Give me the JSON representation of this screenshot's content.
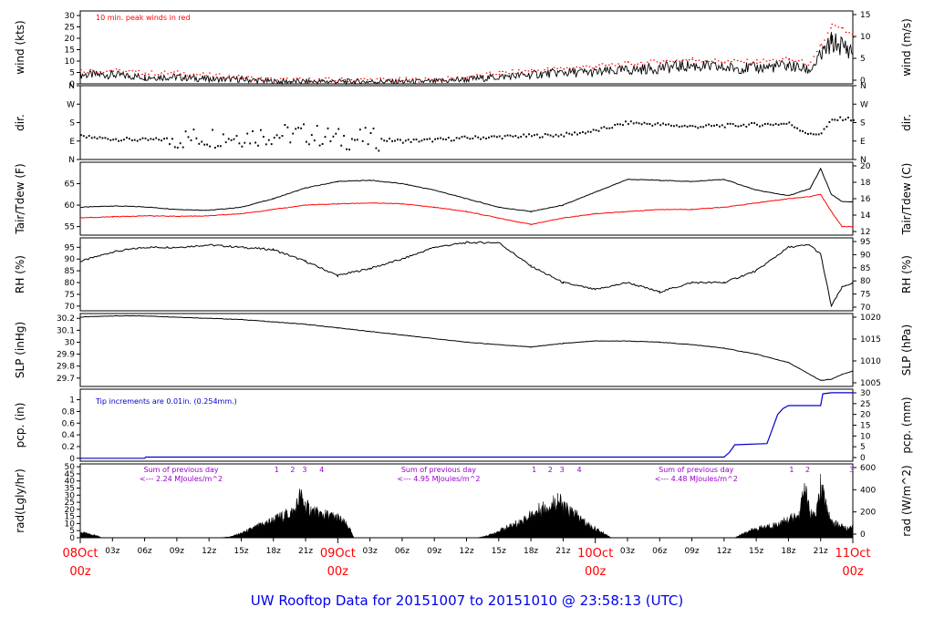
{
  "title": "UW Rooftop Data for 20151007  to  20151010 @ 23:58:13  (UTC)",
  "colors": {
    "title": "#0000ee",
    "peak": "#ff0000",
    "dewpoint": "#ff0000",
    "precip": "#0000cc",
    "note": "#9900cc",
    "date": "#ff0000"
  },
  "x_axis": {
    "range_hours": [
      0,
      72
    ],
    "hour_ticks": [
      "03z",
      "06z",
      "09z",
      "12z",
      "15z",
      "18z",
      "21z",
      "03z",
      "06z",
      "09z",
      "12z",
      "15z",
      "18z",
      "21z",
      "03z",
      "06z",
      "09z",
      "12z",
      "15z",
      "18z",
      "21z"
    ],
    "day_labels": [
      {
        "day": "08Oct",
        "hour": "00z"
      },
      {
        "day": "09Oct",
        "hour": "00z"
      },
      {
        "day": "10Oct",
        "hour": "00z"
      },
      {
        "day": "11Oct",
        "hour": "00z"
      }
    ]
  },
  "chart_data": [
    {
      "type": "line",
      "ylabel": "wind (kts)",
      "ylabel_right": "wind (m/s)",
      "ylim": [
        0,
        32
      ],
      "yticks": [
        0,
        5,
        10,
        15,
        20,
        25,
        30
      ],
      "yticks_right": [
        "0",
        "5",
        "10",
        "15"
      ],
      "legend": "10 min. peak winds in red",
      "series": [
        {
          "name": "wind",
          "x": [
            0,
            3,
            6,
            9,
            12,
            15,
            18,
            21,
            24,
            27,
            30,
            33,
            36,
            39,
            42,
            45,
            48,
            51,
            54,
            57,
            60,
            63,
            66,
            68,
            69,
            70,
            71,
            72
          ],
          "values": [
            4,
            4,
            3,
            3,
            2,
            2,
            1,
            1,
            1,
            1,
            1,
            1,
            2,
            3,
            4,
            5,
            5,
            6,
            7,
            8,
            7,
            7,
            8,
            6,
            12,
            18,
            17,
            14
          ]
        },
        {
          "name": "10 min. peak",
          "x": [
            0,
            3,
            6,
            9,
            12,
            15,
            18,
            21,
            24,
            27,
            30,
            33,
            36,
            39,
            42,
            45,
            48,
            51,
            54,
            57,
            60,
            63,
            66,
            68,
            69,
            70,
            71,
            72
          ],
          "values": [
            6,
            6,
            5,
            5,
            4,
            3,
            2,
            2,
            2,
            2,
            2,
            2,
            3,
            5,
            6,
            7,
            8,
            9,
            10,
            11,
            10,
            10,
            11,
            9,
            17,
            26,
            24,
            21
          ]
        }
      ]
    },
    {
      "type": "scatter",
      "ylabel": "dir.",
      "yticks": [
        "N",
        "E",
        "S",
        "W",
        "N"
      ],
      "series": [
        {
          "name": "direction",
          "x": [
            0,
            3,
            6,
            9,
            12,
            15,
            18,
            21,
            24,
            27,
            30,
            33,
            36,
            39,
            42,
            45,
            48,
            51,
            54,
            57,
            60,
            63,
            66,
            68,
            69,
            70,
            71,
            72
          ],
          "values": [
            110,
            100,
            95,
            100,
            110,
            115,
            120,
            125,
            100,
            100,
            90,
            95,
            105,
            110,
            115,
            120,
            140,
            180,
            170,
            160,
            165,
            170,
            175,
            120,
            130,
            190,
            200,
            195
          ]
        }
      ]
    },
    {
      "type": "line",
      "ylabel": "Tair/Tdew (F)",
      "ylabel_right": "Tair/Tdew (C)",
      "ylim": [
        53,
        70
      ],
      "yticks": [
        55,
        60,
        65
      ],
      "yticks_right": [
        "12",
        "14",
        "16",
        "18",
        "20"
      ],
      "series": [
        {
          "name": "Tair",
          "x": [
            0,
            3,
            6,
            9,
            12,
            15,
            18,
            21,
            24,
            27,
            30,
            33,
            36,
            39,
            42,
            45,
            48,
            51,
            54,
            57,
            60,
            63,
            66,
            68,
            69,
            70,
            71,
            72
          ],
          "values": [
            59.5,
            59.8,
            59.6,
            59,
            58.8,
            59.5,
            61.5,
            64,
            65.5,
            65.8,
            65,
            63.5,
            61.5,
            59.5,
            58.5,
            60,
            63,
            66,
            65.8,
            65.5,
            66,
            63.5,
            62.2,
            63.8,
            68.5,
            62.5,
            60.8,
            60.8
          ]
        },
        {
          "name": "Tdew",
          "x": [
            0,
            3,
            6,
            9,
            12,
            15,
            18,
            21,
            24,
            27,
            30,
            33,
            36,
            39,
            42,
            45,
            48,
            51,
            54,
            57,
            60,
            63,
            66,
            68,
            69,
            70,
            71,
            72
          ],
          "values": [
            57,
            57.3,
            57.5,
            57.4,
            57.5,
            58,
            59,
            60,
            60.3,
            60.5,
            60.3,
            59.5,
            58.5,
            57,
            55.5,
            57,
            58,
            58.5,
            59,
            59,
            59.5,
            60.5,
            61.5,
            62,
            62.5,
            58.5,
            55,
            55
          ]
        }
      ]
    },
    {
      "type": "line",
      "ylabel": "RH (%)",
      "ylabel_right": "RH (%)",
      "ylim": [
        68,
        99
      ],
      "yticks": [
        70,
        75,
        80,
        85,
        90,
        95
      ],
      "yticks_right": [
        "70",
        "75",
        "80",
        "85",
        "90",
        "95"
      ],
      "series": [
        {
          "name": "RH",
          "x": [
            0,
            3,
            6,
            9,
            12,
            15,
            18,
            21,
            24,
            27,
            30,
            33,
            36,
            39,
            42,
            45,
            48,
            51,
            54,
            57,
            60,
            63,
            66,
            68,
            69,
            70,
            71,
            72
          ],
          "values": [
            89,
            93,
            95,
            95,
            96,
            95,
            94,
            89,
            83,
            86,
            90,
            95,
            97,
            97,
            87,
            80,
            77,
            80,
            76,
            80,
            80,
            85,
            95,
            96,
            92,
            70,
            78,
            80
          ]
        }
      ]
    },
    {
      "type": "line",
      "ylabel": "SLP (inHg)",
      "ylabel_right": "SLP (hPa)",
      "ylim": [
        29.63,
        30.24
      ],
      "yticks": [
        29.7,
        29.8,
        29.9,
        30.0,
        30.1,
        30.2
      ],
      "yticks_right": [
        "1005",
        "1010",
        "1015",
        "1020"
      ],
      "series": [
        {
          "name": "SLP",
          "x": [
            0,
            3,
            6,
            9,
            12,
            15,
            18,
            21,
            24,
            27,
            30,
            33,
            36,
            39,
            42,
            45,
            48,
            51,
            54,
            57,
            60,
            63,
            66,
            68,
            69,
            70,
            71,
            72
          ],
          "values": [
            30.21,
            30.22,
            30.22,
            30.21,
            30.2,
            30.19,
            30.17,
            30.15,
            30.12,
            30.09,
            30.06,
            30.03,
            30.0,
            29.98,
            29.96,
            29.99,
            30.01,
            30.01,
            30.0,
            29.98,
            29.95,
            29.9,
            29.83,
            29.73,
            29.68,
            29.69,
            29.73,
            29.76
          ]
        }
      ]
    },
    {
      "type": "area",
      "ylabel": "pcp. (in)",
      "ylabel_right": "pcp. (mm)",
      "ylim": [
        -0.05,
        1.18
      ],
      "yticks": [
        0.0,
        0.2,
        0.4,
        0.6,
        0.8,
        1.0
      ],
      "yticks_right": [
        "0",
        "5",
        "10",
        "15",
        "20",
        "25",
        "30"
      ],
      "annotation": "Tip increments are 0.01in. (0.254mm.)",
      "series": [
        {
          "name": "pcp",
          "x": [
            0,
            6,
            6.1,
            24,
            48,
            60,
            60.5,
            61,
            64,
            64.5,
            65,
            65.5,
            66,
            69,
            69.2,
            70,
            72
          ],
          "values": [
            0,
            0,
            0.02,
            0.02,
            0.02,
            0.02,
            0.1,
            0.23,
            0.25,
            0.5,
            0.75,
            0.85,
            0.9,
            0.9,
            1.1,
            1.12,
            1.12
          ]
        }
      ]
    },
    {
      "type": "area",
      "ylabel": "rad(Lgly/hr)",
      "ylabel_right": "rad (W/m^2)",
      "ylim": [
        0,
        52
      ],
      "yticks": [
        0,
        5,
        10,
        15,
        20,
        25,
        30,
        35,
        40,
        45,
        50
      ],
      "yticks_right": [
        "0",
        "200",
        "400",
        "600"
      ],
      "sum_notes": [
        {
          "x": 6,
          "line1": "Sum of previous day",
          "line2": "<--- 2.24 MJoules/m^2"
        },
        {
          "x": 30,
          "line1": "Sum of previous day",
          "line2": "<--- 4.95 MJoules/m^2"
        },
        {
          "x": 54,
          "line1": "Sum of previous day",
          "line2": "<--- 4.48 MJoules/m^2"
        }
      ],
      "markers": [
        {
          "x": 18.3,
          "label": "1"
        },
        {
          "x": 19.8,
          "label": "2"
        },
        {
          "x": 20.9,
          "label": "3"
        },
        {
          "x": 22.5,
          "label": "4"
        },
        {
          "x": 42.3,
          "label": "1"
        },
        {
          "x": 43.8,
          "label": "2"
        },
        {
          "x": 44.9,
          "label": "3"
        },
        {
          "x": 46.5,
          "label": "4"
        },
        {
          "x": 66.3,
          "label": "1"
        },
        {
          "x": 67.8,
          "label": "2"
        },
        {
          "x": 71.9,
          "label": "3"
        }
      ],
      "series": [
        {
          "name": "rad",
          "x": [
            0,
            0.5,
            1,
            1.5,
            2,
            13,
            14,
            15,
            16,
            17,
            18,
            19,
            20,
            20.5,
            21,
            22,
            23,
            24,
            25,
            25.5,
            37,
            38,
            39,
            40,
            41,
            42,
            43,
            44,
            44.5,
            45,
            46,
            47,
            48,
            49,
            49.5,
            61,
            62,
            63,
            64,
            65,
            66,
            67,
            67.5,
            68,
            68.5,
            69,
            70,
            70.5,
            71,
            71.5,
            72
          ],
          "values": [
            5,
            4,
            3,
            2,
            0,
            0,
            1,
            4,
            8,
            12,
            16,
            20,
            24,
            38,
            28,
            22,
            20,
            18,
            10,
            0,
            0,
            2,
            6,
            10,
            14,
            20,
            26,
            30,
            35,
            27,
            22,
            14,
            8,
            3,
            0,
            0,
            5,
            8,
            10,
            12,
            16,
            20,
            45,
            22,
            18,
            45,
            14,
            12,
            10,
            8,
            9
          ]
        }
      ]
    }
  ]
}
